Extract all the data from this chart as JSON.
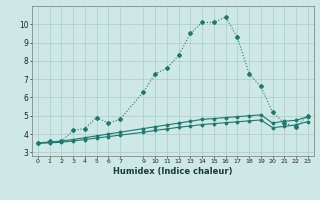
{
  "xlabel": "Humidex (Indice chaleur)",
  "ylabel": "",
  "xlim": [
    -0.5,
    23.5
  ],
  "ylim": [
    2.8,
    11.0
  ],
  "yticks": [
    3,
    4,
    5,
    6,
    7,
    8,
    9,
    10
  ],
  "xticks": [
    0,
    1,
    2,
    3,
    4,
    5,
    6,
    7,
    9,
    10,
    11,
    12,
    13,
    14,
    15,
    16,
    17,
    18,
    19,
    20,
    21,
    22,
    23
  ],
  "xtick_labels": [
    "0",
    "1",
    "2",
    "3",
    "4",
    "5",
    "6",
    "7",
    "9",
    "10",
    "11",
    "12",
    "13",
    "14",
    "15",
    "16",
    "17",
    "18",
    "19",
    "20",
    "21",
    "22",
    "23"
  ],
  "background_color": "#cde8e5",
  "grid_color": "#aacccc",
  "line_color": "#1a7a6e",
  "curve1_x": [
    0,
    1,
    2,
    3,
    4,
    5,
    6,
    7,
    9,
    10,
    11,
    12,
    13,
    14,
    15,
    16,
    17,
    18,
    19,
    20,
    21,
    22,
    23
  ],
  "curve1_y": [
    3.5,
    3.6,
    3.6,
    4.2,
    4.3,
    4.9,
    4.6,
    4.8,
    6.3,
    7.3,
    7.6,
    8.3,
    9.5,
    10.1,
    10.1,
    10.4,
    9.3,
    7.3,
    6.6,
    5.2,
    4.6,
    4.4,
    5.0
  ],
  "curve2_x": [
    0,
    1,
    2,
    3,
    4,
    5,
    6,
    7,
    9,
    10,
    11,
    12,
    13,
    14,
    15,
    16,
    17,
    18,
    19,
    20,
    21,
    22,
    23
  ],
  "curve2_y": [
    3.5,
    3.55,
    3.62,
    3.7,
    3.8,
    3.9,
    4.0,
    4.1,
    4.3,
    4.4,
    4.5,
    4.6,
    4.7,
    4.8,
    4.85,
    4.9,
    4.95,
    5.0,
    5.05,
    4.6,
    4.7,
    4.75,
    4.95
  ],
  "curve3_x": [
    0,
    1,
    2,
    3,
    4,
    5,
    6,
    7,
    9,
    10,
    11,
    12,
    13,
    14,
    15,
    16,
    17,
    18,
    19,
    20,
    21,
    22,
    23
  ],
  "curve3_y": [
    3.5,
    3.52,
    3.55,
    3.62,
    3.7,
    3.78,
    3.86,
    3.94,
    4.1,
    4.2,
    4.28,
    4.37,
    4.44,
    4.52,
    4.57,
    4.62,
    4.67,
    4.72,
    4.77,
    4.35,
    4.42,
    4.5,
    4.68
  ]
}
